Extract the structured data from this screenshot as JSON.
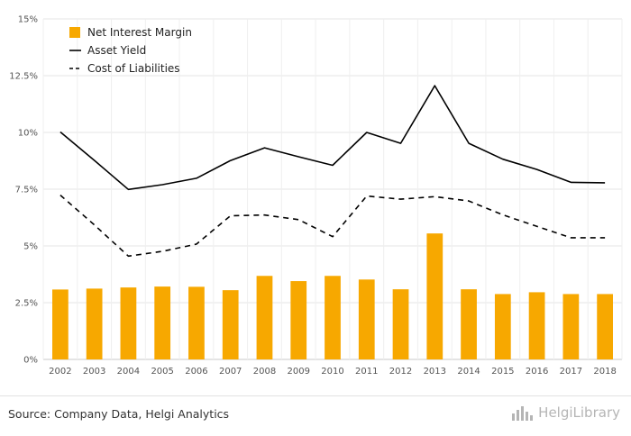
{
  "chart_data": {
    "type": "bar",
    "title": "",
    "xlabel": "",
    "ylabel": "",
    "categories": [
      "2002",
      "2003",
      "2004",
      "2005",
      "2006",
      "2007",
      "2008",
      "2009",
      "2010",
      "2011",
      "2012",
      "2013",
      "2014",
      "2015",
      "2016",
      "2017",
      "2018"
    ],
    "series": [
      {
        "name": "Net Interest Margin",
        "kind": "bar",
        "color": "#f7a800",
        "values": [
          3.08,
          3.12,
          3.17,
          3.21,
          3.2,
          3.05,
          3.68,
          3.45,
          3.68,
          3.52,
          3.09,
          5.55,
          3.09,
          2.88,
          2.96,
          2.88,
          2.88
        ]
      },
      {
        "name": "Asset Yield",
        "kind": "line",
        "dash": "solid",
        "color": "#000000",
        "values": [
          10.02,
          8.77,
          7.49,
          7.7,
          7.98,
          8.76,
          9.32,
          8.93,
          8.55,
          10.0,
          9.52,
          12.06,
          9.52,
          8.82,
          8.37,
          7.8,
          7.78
        ]
      },
      {
        "name": "Cost of Liabilities",
        "kind": "line",
        "dash": "dashed",
        "color": "#000000",
        "values": [
          7.24,
          5.93,
          4.55,
          4.76,
          5.08,
          6.33,
          6.36,
          6.16,
          5.41,
          7.2,
          7.06,
          7.17,
          6.98,
          6.37,
          5.86,
          5.36,
          5.36
        ]
      }
    ],
    "ylim": [
      0,
      15
    ],
    "yticks": [
      "0%",
      "2.5%",
      "5%",
      "7.5%",
      "10%",
      "12.5%",
      "15%"
    ],
    "ytick_values": [
      0,
      2.5,
      5,
      7.5,
      10,
      12.5,
      15
    ],
    "grid": true,
    "legend_position": "top-left"
  },
  "footer": {
    "source": "Source: Company Data, Helgi Analytics",
    "brand": "HelgiLibrary",
    "brand_icon": "helgi-bars-icon"
  }
}
